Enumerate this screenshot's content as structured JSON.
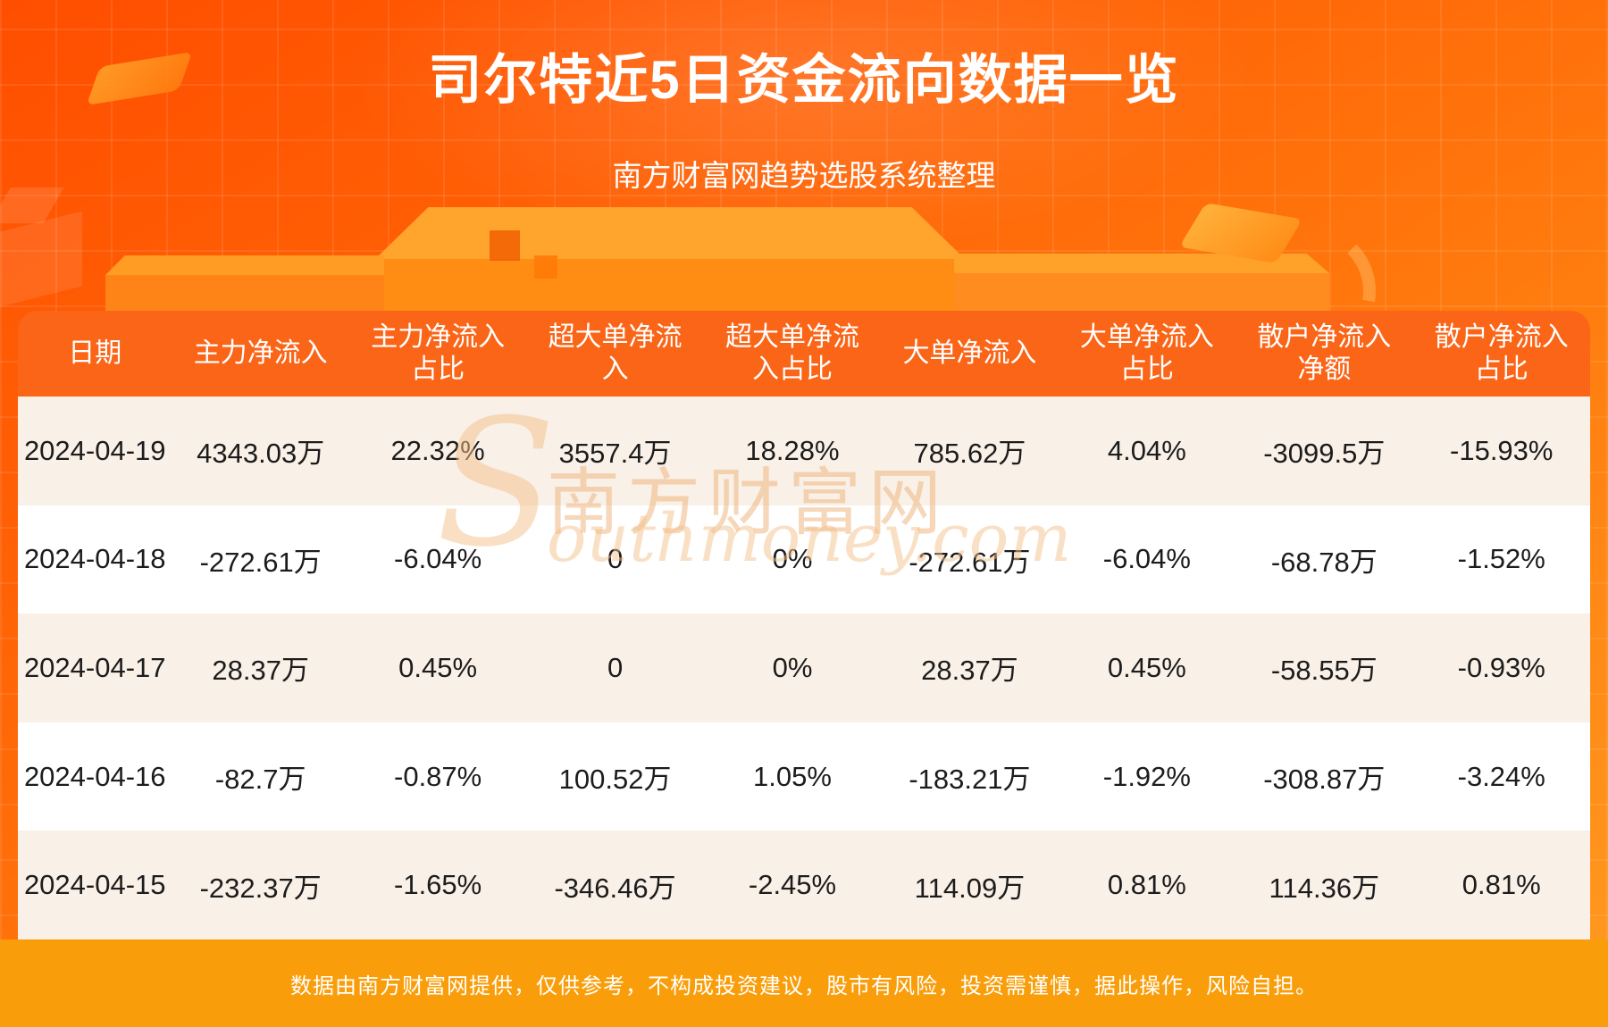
{
  "page": {
    "title": "司尔特近5日资金流向数据一览",
    "subtitle": "南方财富网趋势选股系统整理",
    "footer": "数据由南方财富网提供，仅供参考，不构成投资建议，股市有风险，投资需谨慎，据此操作，风险自担。",
    "watermark_cn": "南方财富网",
    "watermark_en_initial": "S",
    "watermark_en_rest": "outhmoney.com"
  },
  "colors": {
    "background_top": "#ff4e00",
    "background_bottom": "#ff9a20",
    "header_band": "#fa6517",
    "row_cream": "#f9f0e7",
    "row_white": "#ffffff",
    "footer_band": "#f99e0a",
    "text_dark": "#1c1c1c",
    "text_white": "#ffffff"
  },
  "table": {
    "headers_display": [
      "日期",
      "主力净流入",
      "主力净流入\n占比",
      "超大单净流\n入",
      "超大单净流\n入占比",
      "大单净流入",
      "大单净流入\n占比",
      "散户净流入\n净额",
      "散户净流入\n占比"
    ]
  },
  "chart_data": {
    "type": "table",
    "title": "司尔特近5日资金流向数据一览",
    "subtitle": "南方财富网趋势选股系统整理",
    "columns": [
      "日期",
      "主力净流入",
      "主力净流入占比",
      "超大单净流入",
      "超大单净流入占比",
      "大单净流入",
      "大单净流入占比",
      "散户净流入净额",
      "散户净流入占比"
    ],
    "rows": [
      [
        "2024-04-19",
        "4343.03万",
        "22.32%",
        "3557.4万",
        "18.28%",
        "785.62万",
        "4.04%",
        "-3099.5万",
        "-15.93%"
      ],
      [
        "2024-04-18",
        "-272.61万",
        "-6.04%",
        "0",
        "0%",
        "-272.61万",
        "-6.04%",
        "-68.78万",
        "-1.52%"
      ],
      [
        "2024-04-17",
        "28.37万",
        "0.45%",
        "0",
        "0%",
        "28.37万",
        "0.45%",
        "-58.55万",
        "-0.93%"
      ],
      [
        "2024-04-16",
        "-82.7万",
        "-0.87%",
        "100.52万",
        "1.05%",
        "-183.21万",
        "-1.92%",
        "-308.87万",
        "-3.24%"
      ],
      [
        "2024-04-15",
        "-232.37万",
        "-1.65%",
        "-346.46万",
        "-2.45%",
        "114.09万",
        "0.81%",
        "114.36万",
        "0.81%"
      ]
    ]
  }
}
